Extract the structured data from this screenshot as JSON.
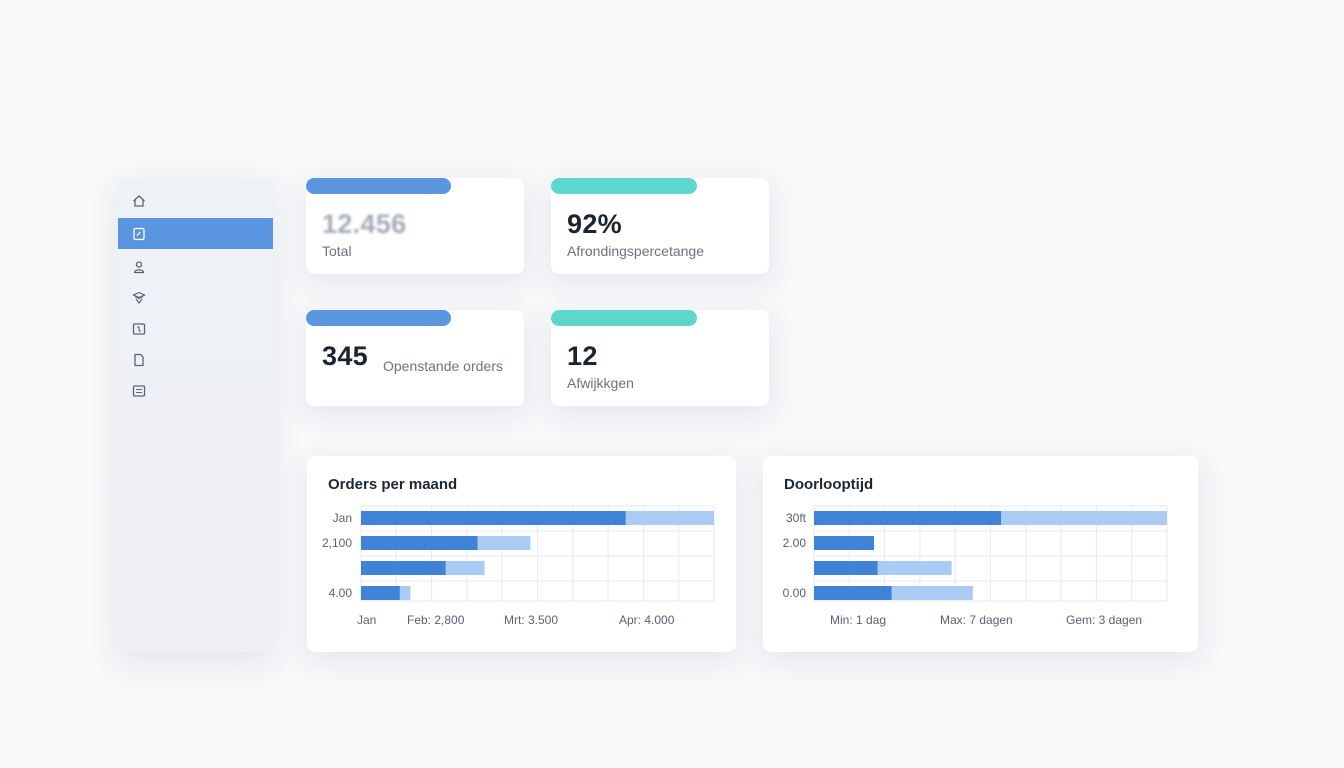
{
  "sidebar": {
    "items": [
      {
        "icon": "home-icon",
        "active": false
      },
      {
        "icon": "document-icon",
        "active": true
      },
      {
        "icon": "user-icon",
        "active": false
      },
      {
        "icon": "box-icon",
        "active": false
      },
      {
        "icon": "report-icon",
        "active": false
      },
      {
        "icon": "file-icon",
        "active": false
      },
      {
        "icon": "list-icon",
        "active": false
      }
    ]
  },
  "stats": [
    {
      "value": "12.456",
      "label": "Total",
      "accent": "#5a97e0"
    },
    {
      "value": "92%",
      "label": "Afrondingspercetange",
      "accent": "#5fd6cd"
    },
    {
      "value": "345",
      "label": "Openstande orders",
      "accent": "#5a97e0"
    },
    {
      "value": "12",
      "label": "Afwijkkgen",
      "accent": "#5fd6cd"
    }
  ],
  "colors": {
    "dark_bar": "#3f82d6",
    "light_bar": "#a9cbf4",
    "grid": "#e7eaef"
  },
  "chart_data": [
    {
      "type": "bar",
      "title": "Orders per maand",
      "y_tick_labels": [
        "Jan",
        "2,100",
        "",
        "4.00"
      ],
      "series": [
        {
          "values": [
            0.75,
            0.33,
            0.24,
            0.11
          ]
        },
        {
          "values": [
            0.25,
            0.15,
            0.11,
            0.03
          ]
        }
      ],
      "footer": [
        "Jan",
        "Feb: 2,800",
        "Mrt: 3.500",
        "Apr: 4.000"
      ]
    },
    {
      "type": "bar",
      "title": "Doorlooptijd",
      "y_tick_labels": [
        "30ft",
        "2.00",
        "",
        "0.00"
      ],
      "series": [
        {
          "values": [
            0.53,
            0.17,
            0.18,
            0.22
          ]
        },
        {
          "values": [
            0.47,
            0.0,
            0.21,
            0.23
          ]
        }
      ],
      "footer": [
        "Min: 1 dag",
        "Max: 7 dagen",
        "Gem: 3 dagen"
      ]
    }
  ]
}
